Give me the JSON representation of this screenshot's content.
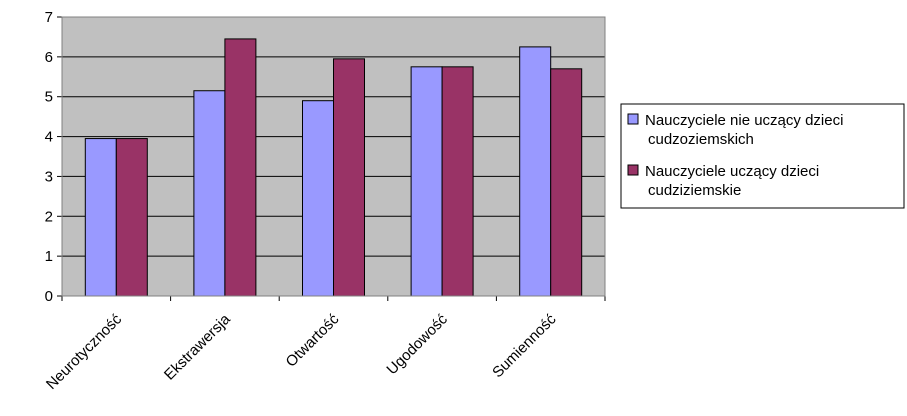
{
  "chart_data": {
    "type": "bar",
    "categories": [
      "Neurotyczność",
      "Ekstrawersja",
      "Otwartość",
      "Ugodowość",
      "Sumienność"
    ],
    "series": [
      {
        "name": "Nauczyciele nie uczący dzieci cudzoziemskich",
        "values": [
          3.95,
          5.15,
          4.9,
          5.75,
          6.25
        ]
      },
      {
        "name": "Nauczyciele uczący dzieci cudziziemskie",
        "values": [
          3.95,
          6.45,
          5.95,
          5.75,
          5.7
        ]
      }
    ],
    "ylim": [
      0,
      7
    ],
    "y_ticks": [
      "0",
      "1",
      "2",
      "3",
      "4",
      "5",
      "6",
      "7"
    ],
    "grid": true,
    "legend_position": "right",
    "colors": {
      "series": [
        "#9999ff",
        "#993366"
      ],
      "plot_background": "#c0c0c0",
      "gridline": "#000000",
      "border": "#808080"
    }
  }
}
